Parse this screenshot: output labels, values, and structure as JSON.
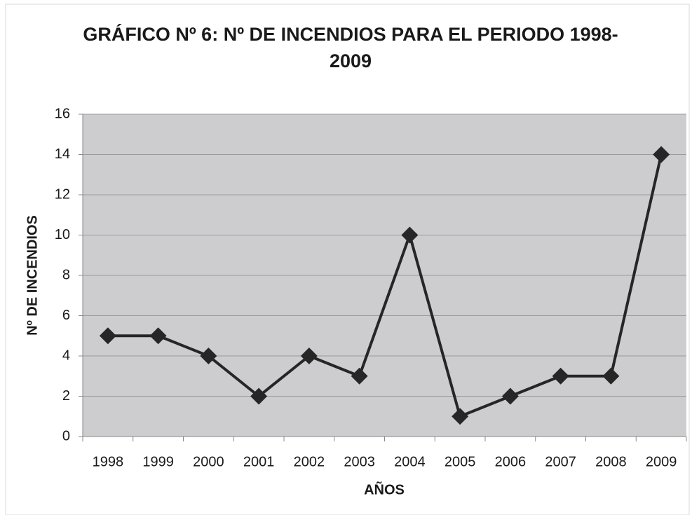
{
  "chart_data": {
    "type": "line",
    "title": "GRÁFICO Nº 6: Nº DE INCENDIOS PARA EL PERIODO 1998-2009",
    "x_label": "AÑOS",
    "y_label": "Nº DE INCENDIOS",
    "categories": [
      "1998",
      "1999",
      "2000",
      "2001",
      "2002",
      "2003",
      "2004",
      "2005",
      "2006",
      "2007",
      "2008",
      "2009"
    ],
    "series": [
      {
        "name": "Nº DE INCENDIOS",
        "color": "#262626",
        "values": [
          5,
          5,
          4,
          2,
          4,
          3,
          10,
          1,
          2,
          3,
          3,
          14
        ]
      }
    ],
    "ylim": [
      0,
      16
    ],
    "yticks": [
      0,
      2,
      4,
      6,
      8,
      10,
      12,
      14,
      16
    ],
    "grid": true
  }
}
